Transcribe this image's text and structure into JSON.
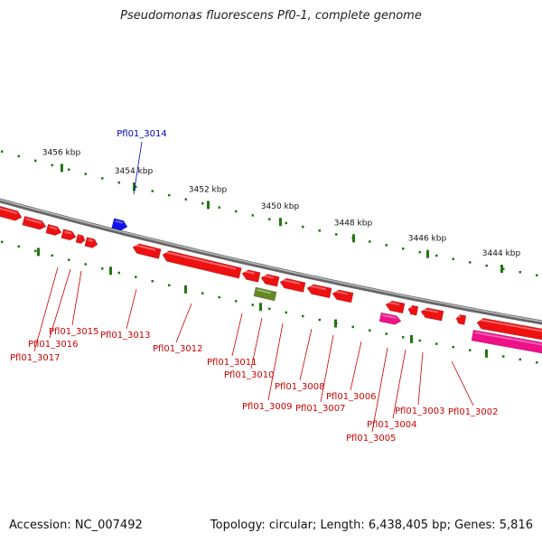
{
  "title": "Pseudomonas fluorescens Pf0-1, complete genome",
  "accession": "Accession: NC_007492",
  "topology": "Topology: circular; Length: 6,438,405 bp; Genes: 5,816",
  "colors": {
    "gene_red": "#ee1111",
    "gene_pink": "#ee1188",
    "gene_blue": "#1111ee",
    "gene_olive": "#668822",
    "scale_green": "#227711",
    "backbone_gray": "#888888",
    "label_red": "#cc0000",
    "label_blue": "#0000bb"
  },
  "scale_labels": [
    "3456 kbp",
    "3454 kbp",
    "3452 kbp",
    "3450 kbp",
    "3448 kbp",
    "3446 kbp",
    "3444 kbp"
  ],
  "gene_labels": [
    {
      "text": "Pfl01_3014",
      "color": "blue"
    },
    {
      "text": "Pfl01_3015",
      "color": "red"
    },
    {
      "text": "Pfl01_3016",
      "color": "red"
    },
    {
      "text": "Pfl01_3017",
      "color": "red"
    },
    {
      "text": "Pfl01_3013",
      "color": "red"
    },
    {
      "text": "Pfl01_3012",
      "color": "red"
    },
    {
      "text": "Pfl01_3011",
      "color": "red"
    },
    {
      "text": "Pfl01_3010",
      "color": "red"
    },
    {
      "text": "Pfl01_3009",
      "color": "red"
    },
    {
      "text": "Pfl01_3008",
      "color": "red"
    },
    {
      "text": "Pfl01_3007",
      "color": "red"
    },
    {
      "text": "Pfl01_3006",
      "color": "red"
    },
    {
      "text": "Pfl01_3005",
      "color": "red"
    },
    {
      "text": "Pfl01_3004",
      "color": "red"
    },
    {
      "text": "Pfl01_3003",
      "color": "red"
    },
    {
      "text": "Pfl01_3002",
      "color": "red"
    }
  ]
}
